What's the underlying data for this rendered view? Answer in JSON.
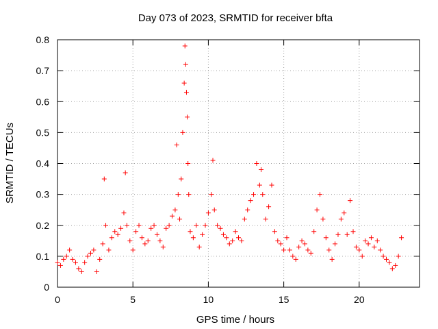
{
  "chart_data": {
    "type": "scatter",
    "title": "Day 073 of 2023, SRMTID for receiver bfta",
    "xlabel": "GPS time / hours",
    "ylabel": "SRMTID / TECUs",
    "xlim": [
      0,
      24
    ],
    "ylim": [
      0,
      0.8
    ],
    "xticks": [
      0,
      5,
      10,
      15,
      20
    ],
    "xtick_labels": [
      "0",
      "5",
      "10",
      "15",
      "20"
    ],
    "yticks": [
      0,
      0.1,
      0.2,
      0.3,
      0.4,
      0.5,
      0.6,
      0.7,
      0.8
    ],
    "ytick_labels": [
      "0",
      "0.1",
      "0.2",
      "0.3",
      "0.4",
      "0.5",
      "0.6",
      "0.7",
      "0.8"
    ],
    "grid": true,
    "marker": "+",
    "series": [
      {
        "name": "SRMTID",
        "color": "#ff0000",
        "x": [
          0.0,
          0.2,
          0.4,
          0.6,
          0.8,
          1.0,
          1.2,
          1.4,
          1.6,
          1.8,
          2.0,
          2.2,
          2.4,
          2.6,
          2.8,
          3.0,
          3.1,
          3.2,
          3.4,
          3.6,
          3.8,
          4.0,
          4.2,
          4.4,
          4.5,
          4.6,
          4.8,
          5.0,
          5.2,
          5.4,
          5.6,
          5.8,
          6.0,
          6.2,
          6.4,
          6.6,
          6.8,
          7.0,
          7.2,
          7.4,
          7.6,
          7.8,
          7.9,
          8.0,
          8.1,
          8.2,
          8.3,
          8.4,
          8.45,
          8.5,
          8.55,
          8.6,
          8.65,
          8.7,
          8.8,
          9.0,
          9.2,
          9.4,
          9.6,
          9.8,
          10.0,
          10.2,
          10.3,
          10.4,
          10.6,
          10.8,
          11.0,
          11.2,
          11.4,
          11.6,
          11.8,
          12.0,
          12.2,
          12.4,
          12.6,
          12.8,
          13.0,
          13.2,
          13.4,
          13.5,
          13.6,
          13.8,
          14.0,
          14.2,
          14.4,
          14.6,
          14.8,
          15.0,
          15.2,
          15.4,
          15.6,
          15.8,
          16.0,
          16.2,
          16.4,
          16.6,
          16.8,
          17.0,
          17.2,
          17.4,
          17.6,
          17.8,
          18.0,
          18.2,
          18.4,
          18.6,
          18.8,
          19.0,
          19.2,
          19.4,
          19.6,
          19.8,
          20.0,
          20.2,
          20.4,
          20.6,
          20.8,
          21.0,
          21.2,
          21.4,
          21.6,
          21.8,
          22.0,
          22.2,
          22.4,
          22.6,
          22.8
        ],
        "y": [
          0.08,
          0.07,
          0.09,
          0.1,
          0.12,
          0.09,
          0.08,
          0.06,
          0.05,
          0.08,
          0.1,
          0.11,
          0.12,
          0.05,
          0.09,
          0.14,
          0.35,
          0.2,
          0.12,
          0.16,
          0.18,
          0.17,
          0.19,
          0.24,
          0.37,
          0.2,
          0.15,
          0.12,
          0.18,
          0.2,
          0.16,
          0.14,
          0.15,
          0.19,
          0.2,
          0.17,
          0.15,
          0.13,
          0.19,
          0.2,
          0.23,
          0.25,
          0.46,
          0.3,
          0.22,
          0.35,
          0.5,
          0.66,
          0.78,
          0.72,
          0.63,
          0.55,
          0.4,
          0.3,
          0.18,
          0.16,
          0.2,
          0.13,
          0.17,
          0.2,
          0.24,
          0.3,
          0.41,
          0.25,
          0.2,
          0.19,
          0.17,
          0.16,
          0.14,
          0.15,
          0.18,
          0.16,
          0.15,
          0.22,
          0.25,
          0.28,
          0.3,
          0.4,
          0.33,
          0.38,
          0.3,
          0.22,
          0.26,
          0.33,
          0.18,
          0.15,
          0.14,
          0.12,
          0.16,
          0.12,
          0.1,
          0.09,
          0.13,
          0.15,
          0.14,
          0.12,
          0.11,
          0.18,
          0.25,
          0.3,
          0.22,
          0.16,
          0.12,
          0.09,
          0.14,
          0.17,
          0.22,
          0.24,
          0.17,
          0.28,
          0.18,
          0.13,
          0.12,
          0.1,
          0.15,
          0.14,
          0.16,
          0.13,
          0.15,
          0.12,
          0.1,
          0.09,
          0.08,
          0.06,
          0.07,
          0.1,
          0.16
        ]
      }
    ]
  }
}
